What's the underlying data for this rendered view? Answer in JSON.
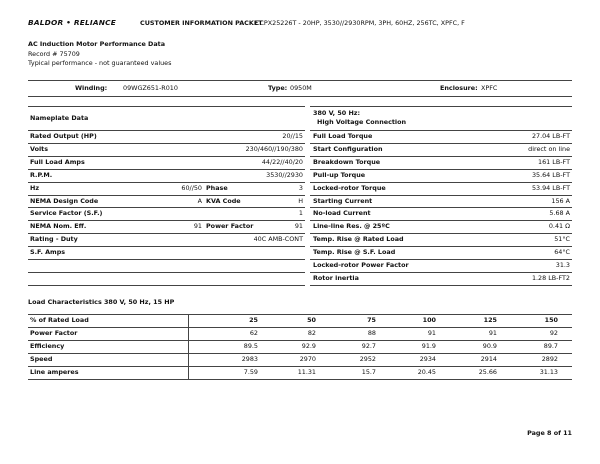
{
  "header": {
    "logo": "BALDOR • RELIANCE",
    "section": "CUSTOMER INFORMATION PACKET",
    "product": "CCPX25226T - 20HP, 3530//2930RPM, 3PH, 60HZ, 256TC, XPFC, F"
  },
  "intro": {
    "title": "AC Induction Motor Performance Data",
    "record": "Record # 75709",
    "note": "Typical performance - not guaranteed values"
  },
  "summary": [
    {
      "label": "Winding:",
      "value": "09WGZ651-R010"
    },
    {
      "label": "Type:",
      "value": "0950M"
    },
    {
      "label": "Enclosure:",
      "value": "XPFC"
    }
  ],
  "nameplate": {
    "title": "Nameplate Data",
    "rows": [
      {
        "label": "Rated Output (HP)",
        "value": "20//15"
      },
      {
        "label": "Volts",
        "value": "230/460//190/380"
      },
      {
        "label": "Full Load Amps",
        "value": "44/22//40/20"
      },
      {
        "label": "R.P.M.",
        "value": "3530//2930"
      },
      {
        "label": "Hz",
        "value": "60//50",
        "label2": "Phase",
        "value2": "3"
      },
      {
        "label": "NEMA Design Code",
        "value": "A",
        "label2": "KVA Code",
        "value2": "H"
      },
      {
        "label": "Service Factor (S.F.)",
        "value": "1"
      },
      {
        "label": "NEMA Nom. Eff.",
        "value": "91",
        "label2": "Power Factor",
        "value2": "91"
      },
      {
        "label": "Rating - Duty",
        "value": "40C AMB-CONT"
      },
      {
        "label": "S.F. Amps"
      }
    ]
  },
  "performance": {
    "title": [
      "380 V, 50 Hz:",
      "High Voltage Connection"
    ],
    "rows": [
      [
        "Full Load Torque",
        "27.04 LB-FT"
      ],
      [
        "Start Configuration",
        "direct on line"
      ],
      [
        "Breakdown Torque",
        "161 LB-FT"
      ],
      [
        "Pull-up Torque",
        "35.64 LB-FT"
      ],
      [
        "Locked-rotor Torque",
        "53.94 LB-FT"
      ],
      [
        "Starting Current",
        "156 A"
      ],
      [
        "No-load Current",
        "5.68 A"
      ],
      [
        "Line-line Res. @ 25ºC",
        "0.41 Ω"
      ],
      [
        "Temp. Rise @ Rated Load",
        "51°C"
      ],
      [
        "Temp. Rise @ S.F. Load",
        "64°C"
      ],
      [
        "Locked-rotor Power Factor",
        "31.3"
      ],
      [
        "Rotor inertia",
        "1.28 LB-FT2"
      ]
    ]
  },
  "load": {
    "title": "Load Characteristics 380 V, 50 Hz, 15 HP",
    "header": [
      "% of Rated Load",
      "25",
      "50",
      "75",
      "100",
      "125",
      "150"
    ],
    "rows": [
      [
        "Power Factor",
        "62",
        "82",
        "88",
        "91",
        "91",
        "92"
      ],
      [
        "Efficiency",
        "89.5",
        "92.9",
        "92.7",
        "91.9",
        "90.9",
        "89.7"
      ],
      [
        "Speed",
        "2983",
        "2970",
        "2952",
        "2934",
        "2914",
        "2892"
      ],
      [
        "Line amperes",
        "7.59",
        "11.31",
        "15.7",
        "20.45",
        "25.66",
        "31.13"
      ]
    ]
  },
  "footer": {
    "page": "Page 8 of 11"
  }
}
